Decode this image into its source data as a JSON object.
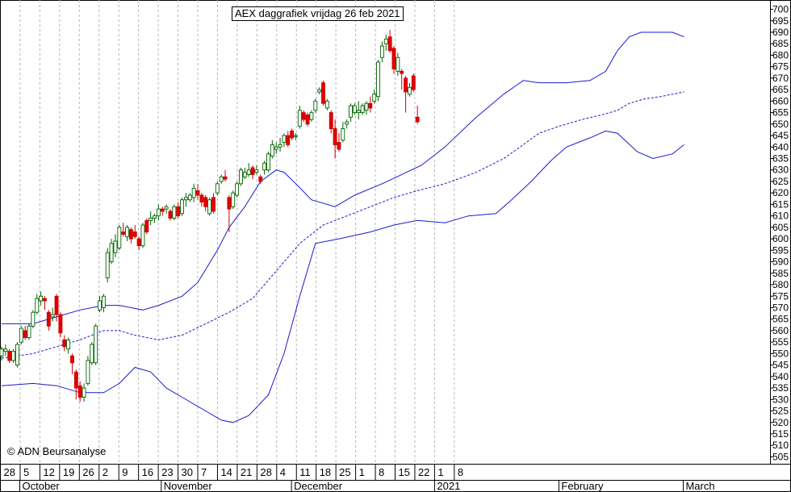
{
  "chart_data": {
    "type": "candlestick",
    "title": "AEX daggrafiek vrijdag 26 feb 2021",
    "copyright": "© ADN Beursanalyse",
    "ylim": [
      502,
      703
    ],
    "yticks": [
      505,
      510,
      515,
      520,
      525,
      530,
      535,
      540,
      545,
      550,
      555,
      560,
      565,
      570,
      575,
      580,
      585,
      590,
      595,
      600,
      605,
      610,
      615,
      620,
      625,
      630,
      635,
      640,
      645,
      650,
      655,
      660,
      665,
      670,
      675,
      680,
      685,
      690,
      695,
      700
    ],
    "xtick_labels": [
      "28",
      "5",
      "12",
      "19",
      "26",
      "2",
      "9",
      "16",
      "23",
      "30",
      "7",
      "14",
      "21",
      "28",
      "4",
      "11",
      "18",
      "25",
      "1",
      "8",
      "15",
      "22",
      "1",
      "8"
    ],
    "month_labels": [
      "October",
      "November",
      "December",
      "2021",
      "February",
      "March"
    ],
    "series": [
      {
        "type": "candles",
        "values": [
          {
            "o": 549,
            "h": 553,
            "l": 547,
            "c": 552
          },
          {
            "o": 551,
            "h": 554,
            "l": 549,
            "c": 552
          },
          {
            "o": 551,
            "h": 552,
            "l": 546,
            "c": 547
          },
          {
            "o": 547,
            "h": 552,
            "l": 546,
            "c": 551
          },
          {
            "o": 545,
            "h": 555,
            "l": 544,
            "c": 554
          },
          {
            "o": 555,
            "h": 562,
            "l": 554,
            "c": 561
          },
          {
            "o": 560,
            "h": 562,
            "l": 556,
            "c": 557
          },
          {
            "o": 557,
            "h": 563,
            "l": 556,
            "c": 562
          },
          {
            "o": 562,
            "h": 569,
            "l": 561,
            "c": 568
          },
          {
            "o": 568,
            "h": 576,
            "l": 567,
            "c": 574
          },
          {
            "o": 573,
            "h": 577,
            "l": 571,
            "c": 575
          },
          {
            "o": 574,
            "h": 575,
            "l": 569,
            "c": 573
          },
          {
            "o": 568,
            "h": 569,
            "l": 560,
            "c": 562
          },
          {
            "o": 566,
            "h": 570,
            "l": 564,
            "c": 567
          },
          {
            "o": 575,
            "h": 576,
            "l": 564,
            "c": 567
          },
          {
            "o": 567,
            "h": 568,
            "l": 557,
            "c": 559
          },
          {
            "o": 556,
            "h": 558,
            "l": 551,
            "c": 553
          },
          {
            "o": 552,
            "h": 557,
            "l": 550,
            "c": 556
          },
          {
            "o": 549,
            "h": 550,
            "l": 541,
            "c": 546
          },
          {
            "o": 542,
            "h": 543,
            "l": 530,
            "c": 535
          },
          {
            "o": 536,
            "h": 538,
            "l": 529,
            "c": 531
          },
          {
            "o": 531,
            "h": 537,
            "l": 529,
            "c": 535
          },
          {
            "o": 537,
            "h": 549,
            "l": 536,
            "c": 547
          },
          {
            "o": 546,
            "h": 555,
            "l": 545,
            "c": 554
          },
          {
            "o": 546,
            "h": 563,
            "l": 545,
            "c": 562
          },
          {
            "o": 569,
            "h": 575,
            "l": 568,
            "c": 573
          },
          {
            "o": 570,
            "h": 576,
            "l": 568,
            "c": 575
          },
          {
            "o": 583,
            "h": 596,
            "l": 581,
            "c": 594
          },
          {
            "o": 590,
            "h": 600,
            "l": 589,
            "c": 598
          },
          {
            "o": 594,
            "h": 602,
            "l": 592,
            "c": 599
          },
          {
            "o": 596,
            "h": 606,
            "l": 595,
            "c": 605
          },
          {
            "o": 603,
            "h": 607,
            "l": 601,
            "c": 602
          },
          {
            "o": 601,
            "h": 606,
            "l": 599,
            "c": 605
          },
          {
            "o": 604,
            "h": 605,
            "l": 598,
            "c": 600
          },
          {
            "o": 603,
            "h": 606,
            "l": 600,
            "c": 601
          },
          {
            "o": 600,
            "h": 601,
            "l": 595,
            "c": 597
          },
          {
            "o": 597,
            "h": 607,
            "l": 596,
            "c": 606
          },
          {
            "o": 608,
            "h": 609,
            "l": 602,
            "c": 603
          },
          {
            "o": 608,
            "h": 612,
            "l": 606,
            "c": 609
          },
          {
            "o": 609,
            "h": 611,
            "l": 607,
            "c": 610
          },
          {
            "o": 610,
            "h": 615,
            "l": 608,
            "c": 613
          },
          {
            "o": 613,
            "h": 614,
            "l": 610,
            "c": 612
          },
          {
            "o": 613,
            "h": 615,
            "l": 611,
            "c": 614
          },
          {
            "o": 612,
            "h": 613,
            "l": 608,
            "c": 609
          },
          {
            "o": 609,
            "h": 615,
            "l": 608,
            "c": 614
          },
          {
            "o": 614,
            "h": 616,
            "l": 609,
            "c": 610
          },
          {
            "o": 611,
            "h": 618,
            "l": 610,
            "c": 617
          },
          {
            "o": 617,
            "h": 620,
            "l": 614,
            "c": 618
          },
          {
            "o": 617,
            "h": 620,
            "l": 616,
            "c": 619
          },
          {
            "o": 618,
            "h": 624,
            "l": 616,
            "c": 622
          },
          {
            "o": 621,
            "h": 624,
            "l": 617,
            "c": 619
          },
          {
            "o": 619,
            "h": 620,
            "l": 614,
            "c": 616
          },
          {
            "o": 618,
            "h": 619,
            "l": 612,
            "c": 614
          },
          {
            "o": 611,
            "h": 618,
            "l": 610,
            "c": 617
          },
          {
            "o": 618,
            "h": 620,
            "l": 611,
            "c": 612
          },
          {
            "o": 620,
            "h": 625,
            "l": 619,
            "c": 624
          },
          {
            "o": 625,
            "h": 628,
            "l": 624,
            "c": 627
          },
          {
            "o": 627,
            "h": 630,
            "l": 625,
            "c": 626
          },
          {
            "o": 618,
            "h": 619,
            "l": 603,
            "c": 613
          },
          {
            "o": 614,
            "h": 621,
            "l": 613,
            "c": 620
          },
          {
            "o": 619,
            "h": 625,
            "l": 618,
            "c": 624
          },
          {
            "o": 624,
            "h": 631,
            "l": 623,
            "c": 630
          },
          {
            "o": 627,
            "h": 631,
            "l": 626,
            "c": 629
          },
          {
            "o": 628,
            "h": 633,
            "l": 627,
            "c": 630
          },
          {
            "o": 631,
            "h": 632,
            "l": 626,
            "c": 628
          },
          {
            "o": 629,
            "h": 632,
            "l": 628,
            "c": 630
          },
          {
            "o": 627,
            "h": 628,
            "l": 624,
            "c": 625
          },
          {
            "o": 630,
            "h": 634,
            "l": 628,
            "c": 633
          },
          {
            "o": 630,
            "h": 638,
            "l": 629,
            "c": 637
          },
          {
            "o": 636,
            "h": 643,
            "l": 635,
            "c": 641
          },
          {
            "o": 639,
            "h": 642,
            "l": 637,
            "c": 640
          },
          {
            "o": 640,
            "h": 644,
            "l": 638,
            "c": 641
          },
          {
            "o": 642,
            "h": 646,
            "l": 640,
            "c": 645
          },
          {
            "o": 645,
            "h": 647,
            "l": 640,
            "c": 641
          },
          {
            "o": 647,
            "h": 648,
            "l": 643,
            "c": 644
          },
          {
            "o": 645,
            "h": 646,
            "l": 643,
            "c": 645
          },
          {
            "o": 649,
            "h": 658,
            "l": 648,
            "c": 656
          },
          {
            "o": 655,
            "h": 656,
            "l": 651,
            "c": 652
          },
          {
            "o": 654,
            "h": 655,
            "l": 649,
            "c": 650
          },
          {
            "o": 652,
            "h": 656,
            "l": 651,
            "c": 655
          },
          {
            "o": 656,
            "h": 661,
            "l": 655,
            "c": 660
          },
          {
            "o": 664,
            "h": 666,
            "l": 663,
            "c": 665
          },
          {
            "o": 668,
            "h": 669,
            "l": 658,
            "c": 659
          },
          {
            "o": 657,
            "h": 661,
            "l": 656,
            "c": 660
          },
          {
            "o": 655,
            "h": 656,
            "l": 646,
            "c": 648
          },
          {
            "o": 648,
            "h": 652,
            "l": 635,
            "c": 641
          },
          {
            "o": 642,
            "h": 646,
            "l": 638,
            "c": 639
          },
          {
            "o": 643,
            "h": 651,
            "l": 642,
            "c": 648
          },
          {
            "o": 650,
            "h": 652,
            "l": 648,
            "c": 651
          },
          {
            "o": 653,
            "h": 659,
            "l": 651,
            "c": 658
          },
          {
            "o": 655,
            "h": 659,
            "l": 654,
            "c": 658
          },
          {
            "o": 655,
            "h": 660,
            "l": 652,
            "c": 656
          },
          {
            "o": 655,
            "h": 659,
            "l": 654,
            "c": 658
          },
          {
            "o": 656,
            "h": 660,
            "l": 654,
            "c": 659
          },
          {
            "o": 659,
            "h": 662,
            "l": 655,
            "c": 657
          },
          {
            "o": 660,
            "h": 665,
            "l": 659,
            "c": 663
          },
          {
            "o": 662,
            "h": 678,
            "l": 660,
            "c": 677
          },
          {
            "o": 679,
            "h": 686,
            "l": 677,
            "c": 684
          },
          {
            "o": 685,
            "h": 689,
            "l": 682,
            "c": 687
          },
          {
            "o": 688,
            "h": 691,
            "l": 681,
            "c": 682
          },
          {
            "o": 683,
            "h": 684,
            "l": 672,
            "c": 674
          },
          {
            "o": 673,
            "h": 681,
            "l": 671,
            "c": 679
          },
          {
            "o": 673,
            "h": 674,
            "l": 665,
            "c": 672
          },
          {
            "o": 670,
            "h": 671,
            "l": 655,
            "c": 664
          },
          {
            "o": 663,
            "h": 668,
            "l": 662,
            "c": 666
          },
          {
            "o": 671,
            "h": 672,
            "l": 664,
            "c": 665
          },
          {
            "o": 653,
            "h": 658,
            "l": 650,
            "c": 651
          }
        ]
      },
      {
        "type": "line",
        "role": "upper",
        "values": [
          [
            0,
            563
          ],
          [
            8,
            563
          ],
          [
            14,
            566
          ],
          [
            20,
            569
          ],
          [
            26,
            571
          ],
          [
            30,
            571
          ],
          [
            36,
            569
          ],
          [
            40,
            571
          ],
          [
            46,
            575
          ],
          [
            50,
            581
          ],
          [
            55,
            595
          ],
          [
            58,
            605
          ],
          [
            62,
            614
          ],
          [
            66,
            625
          ],
          [
            70,
            630
          ],
          [
            72,
            629
          ],
          [
            75,
            624
          ],
          [
            79,
            617
          ],
          [
            85,
            614
          ],
          [
            90,
            619
          ],
          [
            97,
            624
          ],
          [
            102,
            628
          ],
          [
            107,
            632
          ],
          [
            113,
            640
          ],
          [
            121,
            653
          ],
          [
            128,
            663
          ],
          [
            133,
            669
          ],
          [
            137,
            668
          ],
          [
            144,
            668
          ],
          [
            150,
            669
          ],
          [
            154,
            673
          ],
          [
            157,
            682
          ],
          [
            160,
            688
          ],
          [
            163,
            690
          ],
          [
            166,
            690
          ],
          [
            171,
            690
          ],
          [
            174,
            688
          ]
        ]
      },
      {
        "type": "line",
        "role": "middle",
        "values": [
          [
            0,
            548
          ],
          [
            8,
            550
          ],
          [
            14,
            553
          ],
          [
            20,
            556
          ],
          [
            26,
            560
          ],
          [
            30,
            560
          ],
          [
            34,
            558
          ],
          [
            40,
            556
          ],
          [
            46,
            558
          ],
          [
            52,
            563
          ],
          [
            58,
            568
          ],
          [
            64,
            574
          ],
          [
            70,
            586
          ],
          [
            76,
            598
          ],
          [
            82,
            606
          ],
          [
            88,
            610
          ],
          [
            94,
            614
          ],
          [
            100,
            618
          ],
          [
            106,
            621
          ],
          [
            113,
            624
          ],
          [
            121,
            629
          ],
          [
            128,
            635
          ],
          [
            133,
            641
          ],
          [
            137,
            646
          ],
          [
            142,
            649
          ],
          [
            148,
            652
          ],
          [
            153,
            654
          ],
          [
            157,
            656
          ],
          [
            160,
            659
          ],
          [
            164,
            661
          ],
          [
            168,
            662
          ],
          [
            174,
            664
          ]
        ]
      },
      {
        "type": "line",
        "role": "lower",
        "values": [
          [
            0,
            536
          ],
          [
            8,
            537
          ],
          [
            14,
            536
          ],
          [
            20,
            533
          ],
          [
            26,
            533
          ],
          [
            30,
            537
          ],
          [
            34,
            544
          ],
          [
            38,
            542
          ],
          [
            42,
            535
          ],
          [
            46,
            531
          ],
          [
            52,
            525
          ],
          [
            56,
            521
          ],
          [
            59,
            520
          ],
          [
            63,
            523
          ],
          [
            68,
            532
          ],
          [
            72,
            550
          ],
          [
            76,
            575
          ],
          [
            80,
            598
          ],
          [
            86,
            600
          ],
          [
            94,
            603
          ],
          [
            100,
            606
          ],
          [
            106,
            608
          ],
          [
            113,
            607
          ],
          [
            119,
            610
          ],
          [
            126,
            611
          ],
          [
            130,
            617
          ],
          [
            135,
            625
          ],
          [
            140,
            634
          ],
          [
            144,
            640
          ],
          [
            150,
            644
          ],
          [
            154,
            647
          ],
          [
            157,
            646
          ],
          [
            162,
            638
          ],
          [
            166,
            635
          ],
          [
            171,
            637
          ],
          [
            174,
            641
          ]
        ]
      }
    ]
  }
}
